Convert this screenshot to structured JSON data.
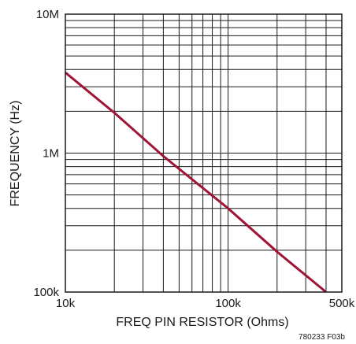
{
  "chart_data": {
    "type": "line",
    "xlabel": "FREQ PIN RESISTOR (Ohms)",
    "ylabel": "FREQUENCY (Hz)",
    "x_scale": "log",
    "y_scale": "log",
    "xlim": [
      10000,
      500000
    ],
    "ylim": [
      100000,
      10000000
    ],
    "x_tick_labels": [
      {
        "value": 10000,
        "label": "10k"
      },
      {
        "value": 100000,
        "label": "100k"
      },
      {
        "value": 500000,
        "label": "500k"
      }
    ],
    "y_tick_labels": [
      {
        "value": 100000,
        "label": "100k"
      },
      {
        "value": 1000000,
        "label": "1M"
      },
      {
        "value": 10000000,
        "label": "10M"
      }
    ],
    "grid": true,
    "series": [
      {
        "color": "#a01535",
        "x": [
          10000,
          20000,
          40000,
          100000,
          200000,
          400000
        ],
        "y": [
          3800000,
          1950000,
          950000,
          400000,
          195000,
          100000
        ]
      }
    ],
    "figure_code": "780233 F03b"
  }
}
